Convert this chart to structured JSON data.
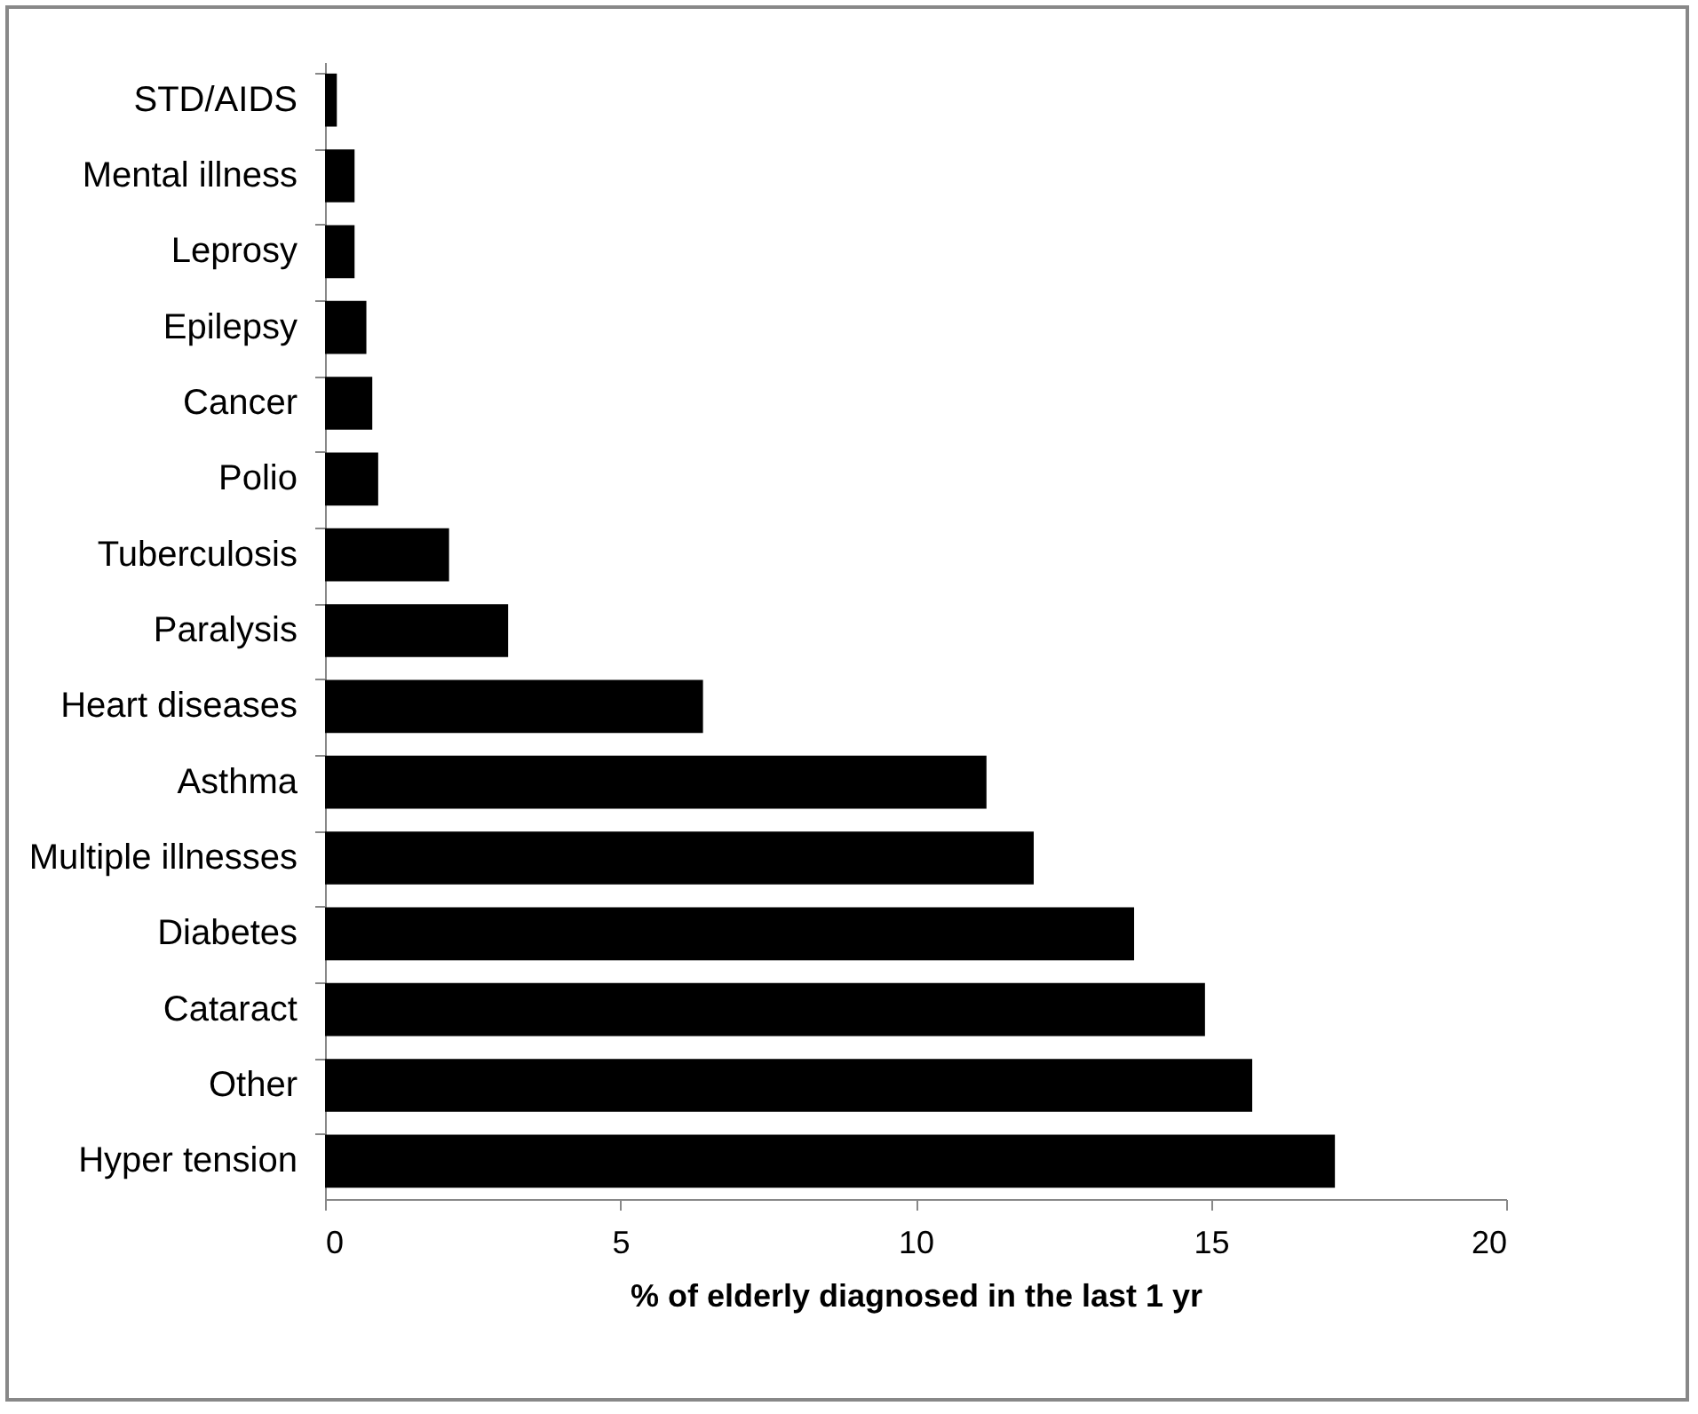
{
  "chart_data": {
    "type": "bar",
    "orientation": "horizontal",
    "xlabel": "% of elderly diagnosed in the last 1 yr",
    "categories": [
      "STD/AIDS",
      "Mental illness",
      "Leprosy",
      "Epilepsy",
      "Cancer",
      "Polio",
      "Tuberculosis",
      "Paralysis",
      "Heart diseases",
      "Asthma",
      "Multiple illnesses",
      "Diabetes",
      "Cataract",
      "Other",
      "Hyper tension"
    ],
    "values": [
      0.2,
      0.5,
      0.5,
      0.7,
      0.8,
      0.9,
      2.1,
      3.1,
      6.4,
      11.2,
      12.0,
      13.7,
      14.9,
      15.7,
      17.1
    ],
    "color": "#000000",
    "xlim": [
      0,
      20
    ],
    "xticks": [
      0,
      5,
      10,
      15,
      20
    ],
    "grid": false
  }
}
